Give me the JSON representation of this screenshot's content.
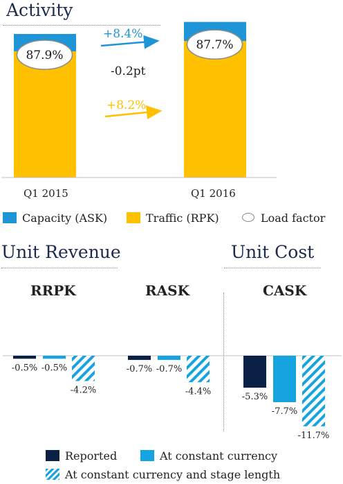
{
  "activity": {
    "title": "Activity",
    "quarters": [
      "Q1 2015",
      "Q1 2016"
    ],
    "load_factor": [
      "87.9%",
      "87.7%"
    ],
    "capacity_change": "+8.4%",
    "traffic_change": "+8.2%",
    "load_factor_change": "-0.2pt",
    "legend": [
      "Capacity (ASK)",
      "Traffic (RPK)",
      "Load factor"
    ],
    "colors": {
      "capacity": "#1d95d6",
      "traffic": "#ffc000"
    }
  },
  "unit_revenue": {
    "title": "Unit Revenue",
    "metrics": [
      "RRPK",
      "RASK"
    ]
  },
  "unit_cost": {
    "title": "Unit Cost",
    "metrics": [
      "CASK"
    ]
  },
  "legend2": [
    "Reported",
    "At constant currency",
    "At constant currency and stage length"
  ],
  "chart_data": [
    {
      "type": "bar",
      "title": "Activity",
      "categories": [
        "Q1 2015",
        "Q1 2016"
      ],
      "series": [
        {
          "name": "Capacity (ASK)",
          "values": [
            100,
            108.4
          ]
        },
        {
          "name": "Traffic (RPK)",
          "values": [
            87.9,
            95.1
          ]
        }
      ],
      "load_factor": [
        87.9,
        87.7
      ],
      "annotations": [
        "+8.4%",
        "+8.2%",
        "-0.2pt"
      ],
      "colors": [
        "#1d95d6",
        "#ffc000"
      ]
    },
    {
      "type": "bar",
      "title": "Unit Revenue / Unit Cost",
      "categories": [
        "RRPK",
        "RASK",
        "CASK"
      ],
      "series": [
        {
          "name": "Reported",
          "values": [
            -0.5,
            -0.7,
            -5.3
          ],
          "labels": [
            "-0.5%",
            "-0.7%",
            "-5.3%"
          ]
        },
        {
          "name": "At constant currency",
          "values": [
            -0.5,
            -0.7,
            -7.7
          ],
          "labels": [
            "-0.5%",
            "-0.7%",
            "-7.7%"
          ]
        },
        {
          "name": "At constant currency and stage length",
          "values": [
            -4.2,
            -4.4,
            -11.7
          ],
          "labels": [
            "-4.2%",
            "-4.4%",
            "-11.7%"
          ]
        }
      ],
      "colors": [
        "#0a2145",
        "#16a4e0",
        "#16a4e0"
      ]
    }
  ]
}
